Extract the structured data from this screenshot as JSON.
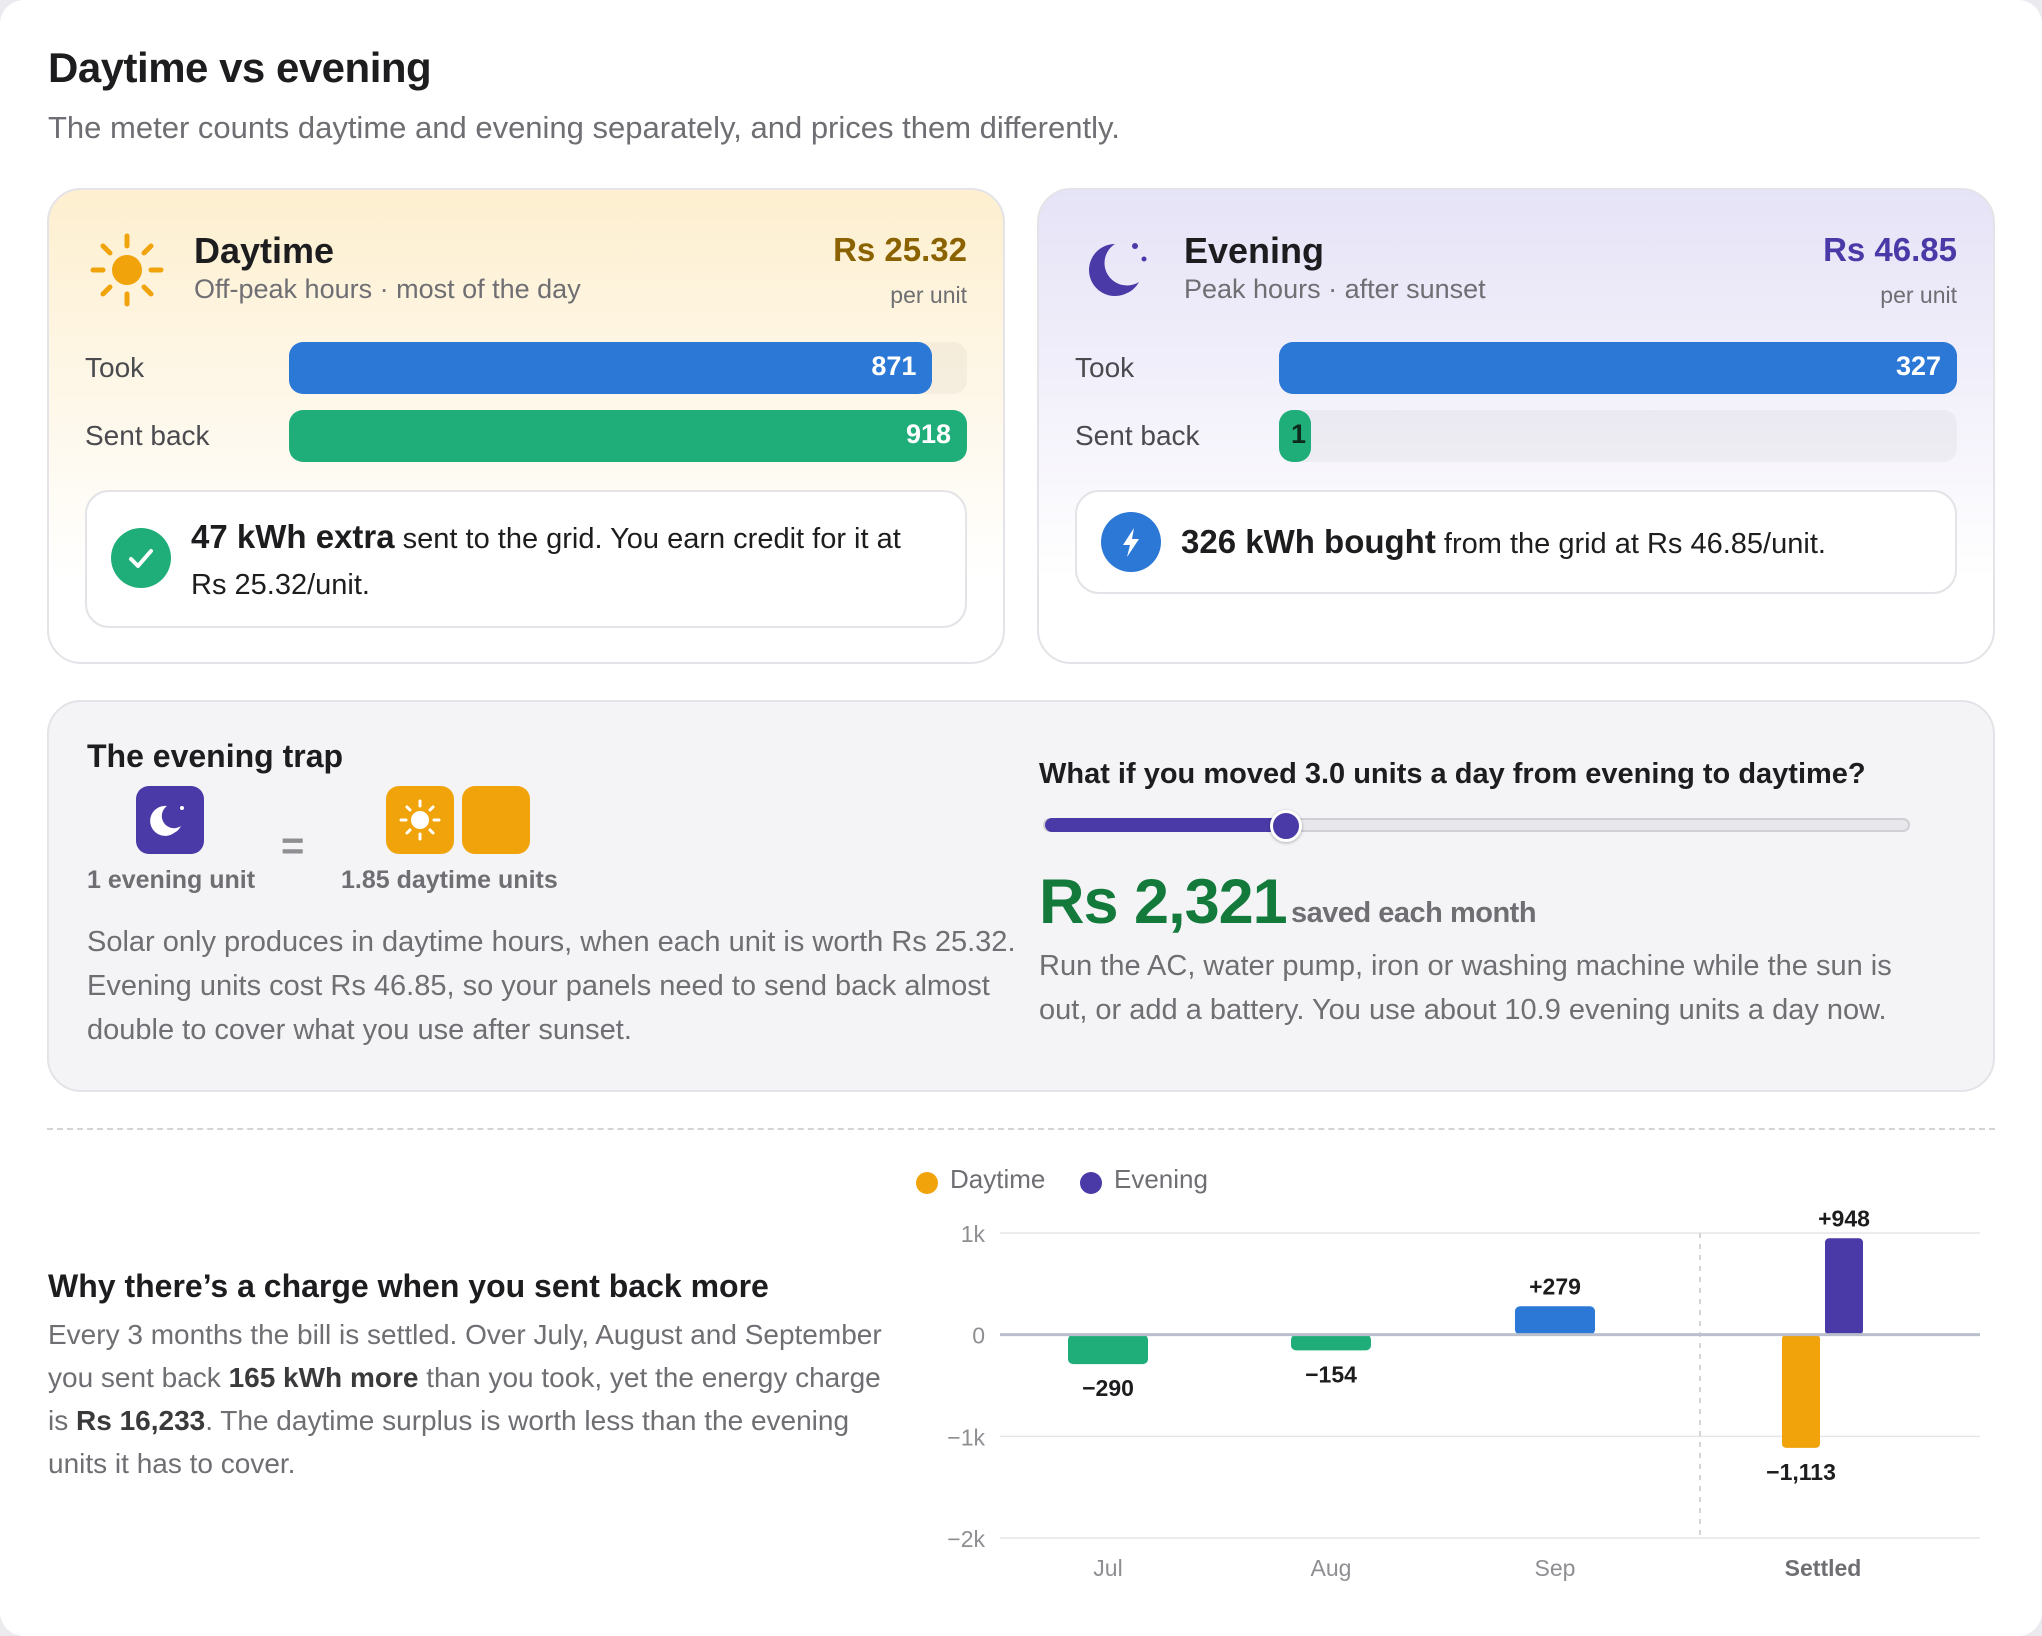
{
  "header": {
    "title": "Daytime vs evening",
    "subtitle": "The meter counts daytime and evening separately, and prices them differently."
  },
  "daytime": {
    "icon": "sun-icon",
    "title": "Daytime",
    "subtitle": "Off-peak hours · most of the day",
    "price": "Rs 25.32",
    "price_unit": "per unit",
    "took_label": "Took",
    "took_value": "871",
    "took_fraction": 0.949,
    "sent_label": "Sent back",
    "sent_value": "918",
    "sent_fraction": 1.0,
    "note_bold": "47 kWh extra",
    "note_rest": " sent to the grid. You earn credit for it at Rs 25.32/unit.",
    "note_icon": "check-icon",
    "accent": "#8a6200",
    "note_color": "#1fae7a"
  },
  "evening": {
    "icon": "moon-icon",
    "title": "Evening",
    "subtitle": "Peak hours · after sunset",
    "price": "Rs 46.85",
    "price_unit": "per unit",
    "took_label": "Took",
    "took_value": "327",
    "took_fraction": 1.0,
    "sent_label": "Sent back",
    "sent_value": "1",
    "sent_fraction": 0.003,
    "note_bold": "326 kWh bought",
    "note_rest": " from the grid at Rs 46.85/unit.",
    "note_icon": "bolt-icon",
    "accent": "#4a3aa7",
    "note_color": "#2b78d6"
  },
  "trap": {
    "title": "The evening trap",
    "evening_unit_label": "1 evening unit",
    "equals": "=",
    "daytime_units_label": "1.85 daytime units",
    "body": "Solar only produces in daytime hours, when each unit is worth Rs 25.32. Evening units cost Rs 46.85, so your panels need to send back almost double to cover what you use after sunset.",
    "whatif_question": "What if you moved 3.0 units a day from evening to daytime?",
    "slider_value": 3.0,
    "slider_fraction": 0.28,
    "saving_amount": "Rs 2,321",
    "saving_label": "saved each month",
    "whatif_body": "Run the AC, water pump, iron or washing machine while the sun is out, or add a battery. You use about 10.9 evening units a day now."
  },
  "settlement": {
    "title": "Why there’s a charge when you sent back more",
    "body_1": "Every 3 months the bill is settled. Over July, August and September you sent back ",
    "body_bold_1": "165 kWh more",
    "body_2": " than you took, yet the energy charge is ",
    "body_bold_2": "Rs 16,233",
    "body_3": ". The daytime surplus is worth less than the evening units it has to cover."
  },
  "colors": {
    "daytime": "#f0a30a",
    "evening": "#4a3aa7",
    "negative": "#1fae7a",
    "positive": "#2b78d6"
  },
  "chart_data": {
    "type": "bar",
    "legend": [
      "Daytime",
      "Evening"
    ],
    "legend_placement": "top",
    "categories": [
      "Jul",
      "Aug",
      "Sep",
      "Settled"
    ],
    "monthly_net": [
      {
        "category": "Jul",
        "value": -290,
        "label": "−290"
      },
      {
        "category": "Aug",
        "value": -154,
        "label": "−154"
      },
      {
        "category": "Sep",
        "value": 279,
        "label": "+279"
      }
    ],
    "settled": [
      {
        "series": "Daytime",
        "value": -1113,
        "label": "−1,113"
      },
      {
        "series": "Evening",
        "value": 948,
        "label": "+948"
      }
    ],
    "ylim": [
      -2000,
      1000
    ],
    "yticks": [
      1000,
      0,
      -1000,
      -2000
    ],
    "ytick_labels": [
      "1k",
      "0",
      "−1k",
      "−2k"
    ],
    "grid": true
  }
}
